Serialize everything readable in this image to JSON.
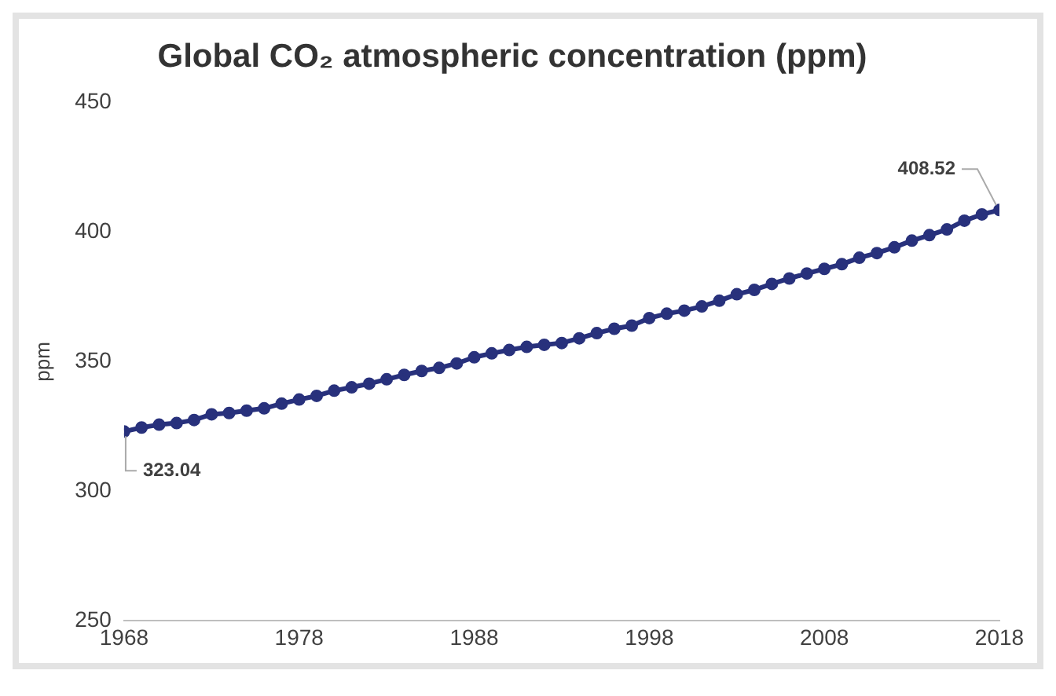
{
  "chart_data": {
    "type": "line",
    "title": "Global CO₂ atmospheric concentration (ppm)",
    "ylabel": "ppm",
    "x": [
      1968,
      1969,
      1970,
      1971,
      1972,
      1973,
      1974,
      1975,
      1976,
      1977,
      1978,
      1979,
      1980,
      1981,
      1982,
      1983,
      1984,
      1985,
      1986,
      1987,
      1988,
      1989,
      1990,
      1991,
      1992,
      1993,
      1994,
      1995,
      1996,
      1997,
      1998,
      1999,
      2000,
      2001,
      2002,
      2003,
      2004,
      2005,
      2006,
      2007,
      2008,
      2009,
      2010,
      2011,
      2012,
      2013,
      2014,
      2015,
      2016,
      2017,
      2018
    ],
    "series": [
      {
        "color": "#28317c",
        "values": [
          323.04,
          324.6,
          325.7,
          326.3,
          327.5,
          329.7,
          330.2,
          331.1,
          332.0,
          333.8,
          335.4,
          336.8,
          338.8,
          340.1,
          341.5,
          343.2,
          344.9,
          346.4,
          347.6,
          349.3,
          351.7,
          353.2,
          354.5,
          355.7,
          356.5,
          357.2,
          359.0,
          361.0,
          362.7,
          363.9,
          366.8,
          368.5,
          369.7,
          371.3,
          373.5,
          376.0,
          377.7,
          380.0,
          382.1,
          384.0,
          385.8,
          387.6,
          390.1,
          391.9,
          394.1,
          396.7,
          398.8,
          401.0,
          404.4,
          406.8,
          408.52
        ],
        "value_labels": [
          "323.04",
          null,
          null,
          null,
          null,
          null,
          null,
          null,
          null,
          null,
          null,
          null,
          null,
          null,
          null,
          null,
          null,
          null,
          null,
          null,
          null,
          null,
          null,
          null,
          null,
          null,
          null,
          null,
          null,
          null,
          null,
          null,
          null,
          null,
          null,
          null,
          null,
          null,
          null,
          null,
          null,
          null,
          null,
          null,
          null,
          null,
          null,
          null,
          null,
          null,
          "408.52"
        ]
      }
    ],
    "xlim": [
      1968,
      2018
    ],
    "xticks": [
      1968,
      1978,
      1988,
      1998,
      2008,
      2018
    ],
    "ylim": [
      250,
      450
    ],
    "yticks": [
      250,
      300,
      350,
      400,
      450
    ],
    "grid": false,
    "legend": false,
    "marker": "circle",
    "line_style": "solid"
  }
}
